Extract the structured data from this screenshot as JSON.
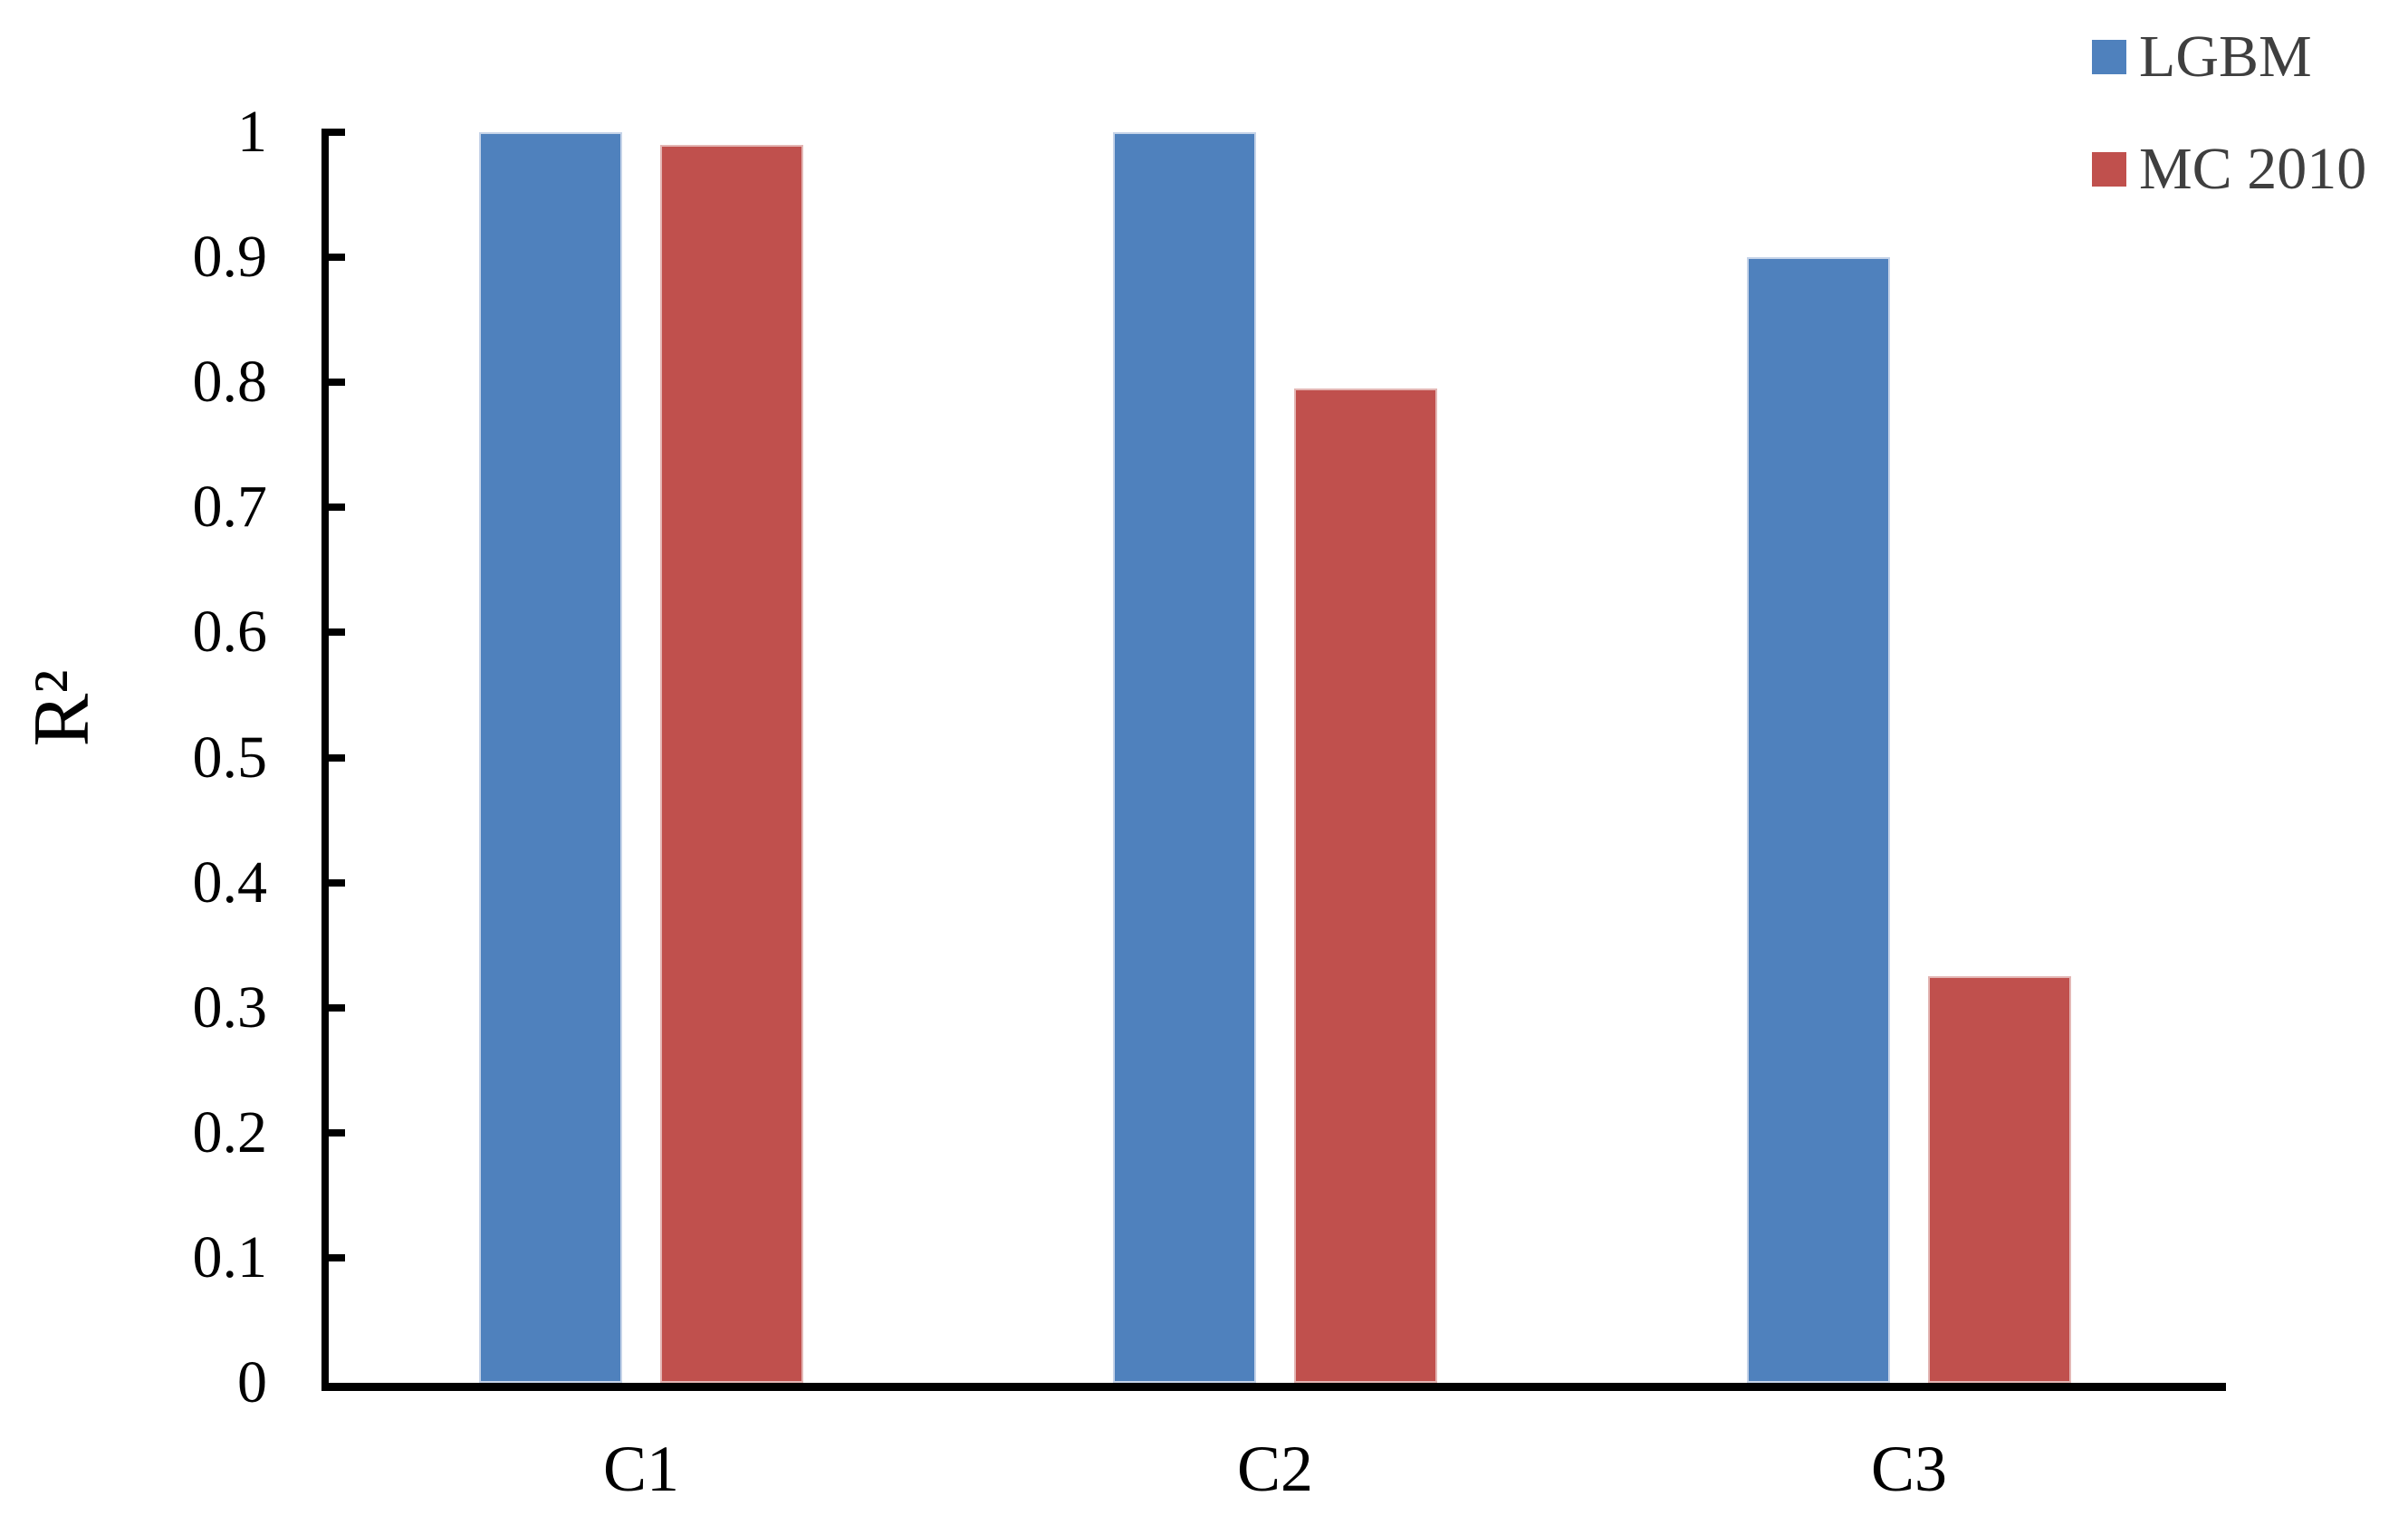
{
  "chart_data": {
    "type": "bar",
    "title": "",
    "xlabel": "",
    "ylabel": "R²",
    "categories": [
      "C1",
      "C2",
      "C3"
    ],
    "series": [
      {
        "name": "LGBM",
        "color": "#4F81BD",
        "edge_color": "#C5D3E8",
        "values": [
          1.0,
          1.0,
          0.9
        ]
      },
      {
        "name": "MC 2010",
        "color": "#C0504D",
        "edge_color": "#E3B6B4",
        "values": [
          0.99,
          0.795,
          0.325
        ]
      }
    ],
    "ylim": [
      0,
      1
    ],
    "y_tick_labels": [
      "0",
      "0.1",
      "0.2",
      "0.3",
      "0.4",
      "0.5",
      "0.6",
      "0.7",
      "0.8",
      "0.9",
      "1"
    ],
    "grid": false,
    "legend_position": "top-right",
    "colors": {
      "background": "#FFFFFF",
      "axis": "#000000",
      "tick_label_text": "#000000",
      "category_label_text": "#000000",
      "legend_text": "#3F3F3F"
    }
  }
}
